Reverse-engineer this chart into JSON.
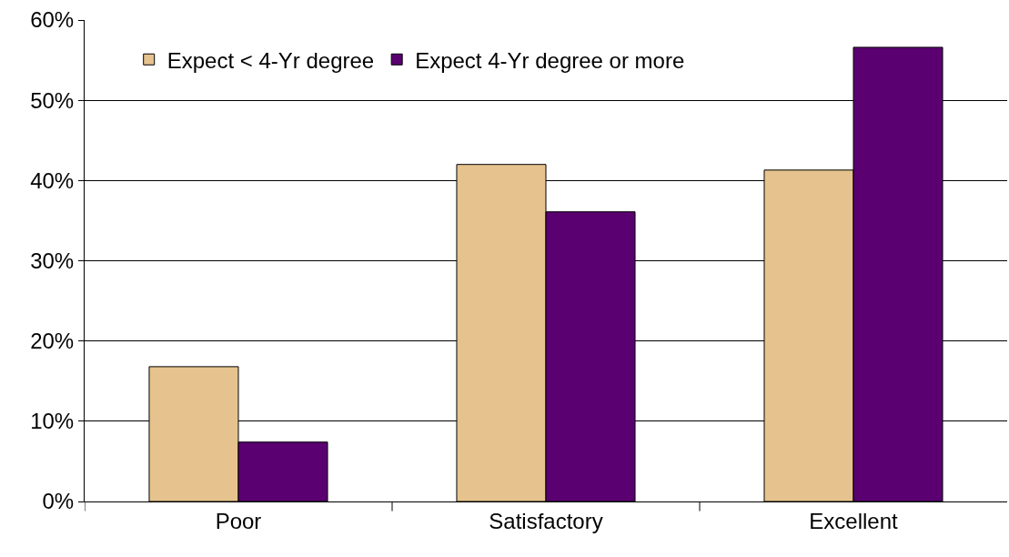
{
  "chart_data": {
    "type": "bar",
    "categories": [
      "Poor",
      "Satisfactory",
      "Excellent"
    ],
    "series": [
      {
        "name": "Expect < 4-Yr degree",
        "color": "#e6c38e",
        "values": [
          16.8,
          42.0,
          41.3
        ]
      },
      {
        "name": "Expect 4-Yr degree or more",
        "color": "#5a0070",
        "values": [
          7.4,
          36.1,
          56.6
        ]
      }
    ],
    "ylim": [
      0,
      60
    ],
    "yticks": [
      {
        "value": 0,
        "label": "0%"
      },
      {
        "value": 10,
        "label": "10%"
      },
      {
        "value": 20,
        "label": "20%"
      },
      {
        "value": 30,
        "label": "30%"
      },
      {
        "value": 40,
        "label": "40%"
      },
      {
        "value": 50,
        "label": "50%"
      },
      {
        "value": 60,
        "label": "60%"
      }
    ],
    "grid": "y",
    "legend": "top left"
  }
}
